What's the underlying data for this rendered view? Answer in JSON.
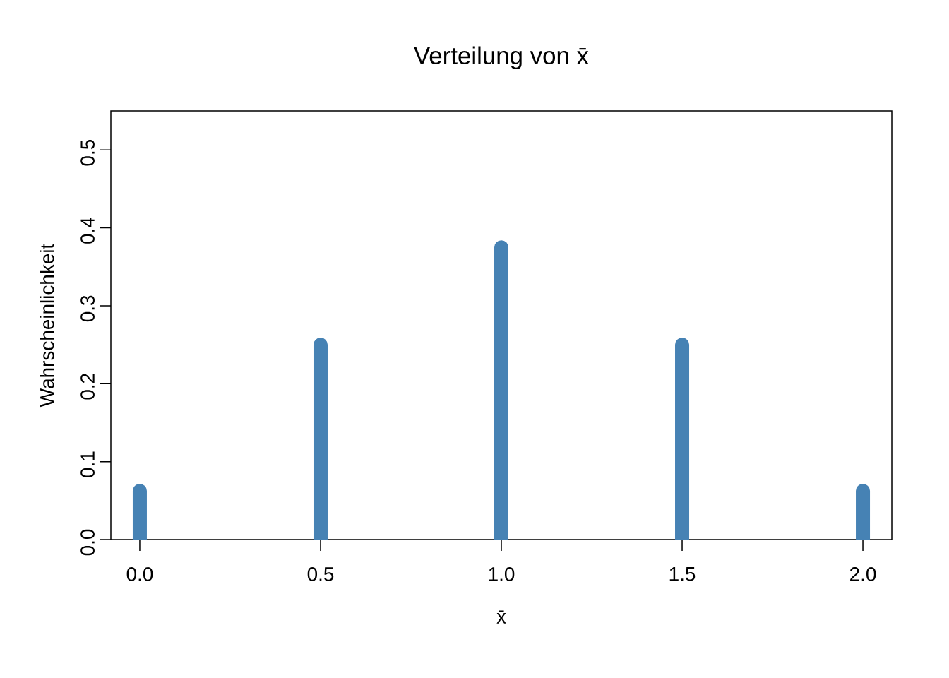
{
  "chart_data": {
    "type": "bar",
    "title": "Verteilung von x̄",
    "xlabel": "x̄",
    "ylabel": "Wahrscheinlichkeit",
    "x": [
      0,
      0.5,
      1,
      1.5,
      2
    ],
    "values": [
      0.0625,
      0.25,
      0.375,
      0.25,
      0.0625
    ],
    "color": "#4682b4",
    "xlim": [
      -0.08,
      2.08
    ],
    "ylim": [
      0,
      0.55
    ],
    "xticks": [
      {
        "value": 0,
        "label": "0.0"
      },
      {
        "value": 0.5,
        "label": "0.5"
      },
      {
        "value": 1,
        "label": "1.0"
      },
      {
        "value": 1.5,
        "label": "1.5"
      },
      {
        "value": 2,
        "label": "2.0"
      }
    ],
    "yticks": [
      {
        "value": 0,
        "label": "0.0"
      },
      {
        "value": 0.1,
        "label": "0.1"
      },
      {
        "value": 0.2,
        "label": "0.2"
      },
      {
        "value": 0.3,
        "label": "0.3"
      },
      {
        "value": 0.4,
        "label": "0.4"
      },
      {
        "value": 0.5,
        "label": "0.5"
      }
    ]
  }
}
